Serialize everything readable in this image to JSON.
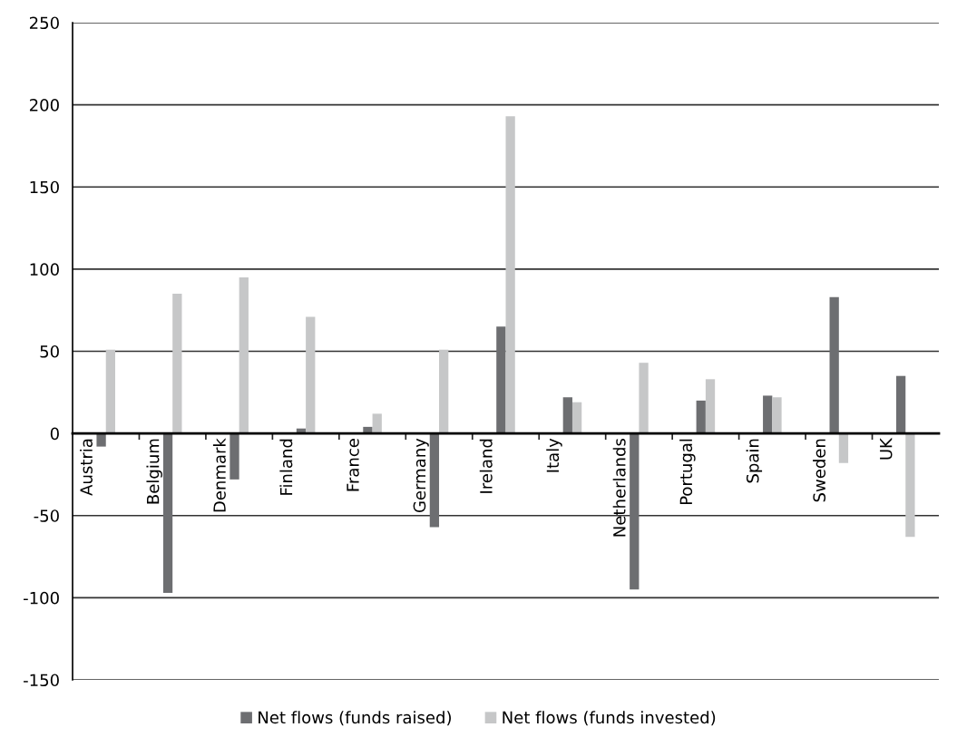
{
  "chart_data": {
    "type": "bar",
    "categories": [
      "Austria",
      "Belgium",
      "Denmark",
      "Finland",
      "France",
      "Germany",
      "Ireland",
      "Italy",
      "Netherlands",
      "Portugal",
      "Spain",
      "Sweden",
      "UK"
    ],
    "series": [
      {
        "name": "Net flows (funds raised)",
        "color": "#6d6e71",
        "values": [
          -8,
          -97,
          -28,
          3,
          4,
          -57,
          65,
          22,
          -95,
          20,
          23,
          83,
          35
        ]
      },
      {
        "name": "Net flows (funds invested)",
        "color": "#c6c7c8",
        "values": [
          51,
          85,
          95,
          71,
          12,
          51,
          193,
          19,
          43,
          33,
          22,
          -18,
          -63
        ]
      }
    ],
    "ylim": [
      -150,
      250
    ],
    "yticks": [
      -150,
      -100,
      -50,
      0,
      50,
      100,
      150,
      200,
      250
    ],
    "grid": "y",
    "legend": "bottom"
  }
}
